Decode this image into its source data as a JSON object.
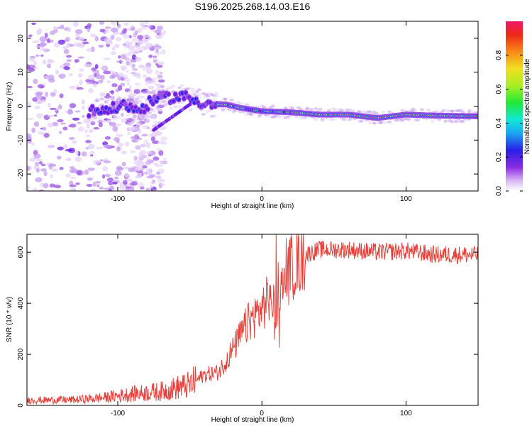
{
  "chart_data": [
    {
      "type": "heatmap",
      "title": "S196.2025.268.14.03.E16",
      "xlabel": "Height of straight line (km)",
      "ylabel": "Frequency (Hz)",
      "xlim": [
        -163,
        150
      ],
      "ylim": [
        -25,
        25
      ],
      "xticks": [
        -100,
        0,
        100
      ],
      "yticks": [
        -20,
        -10,
        0,
        10,
        20
      ],
      "colorbar": {
        "label": "Normalized spectral amplitude",
        "ticks": [
          0.0,
          0.2,
          0.4,
          0.6,
          0.8
        ],
        "range": [
          0,
          1
        ]
      },
      "ridge": {
        "description_points": [
          {
            "x": -118,
            "y": -1.5
          },
          {
            "x": -105,
            "y": -1.0
          },
          {
            "x": -95,
            "y": 0.5
          },
          {
            "x": -85,
            "y": -1.5
          },
          {
            "x": -75,
            "y": 2.0
          },
          {
            "x": -65,
            "y": 2.5
          },
          {
            "x": -55,
            "y": 3.0
          },
          {
            "x": -45,
            "y": 1.5
          },
          {
            "x": -35,
            "y": 0.5
          },
          {
            "x": -25,
            "y": 0.5
          },
          {
            "x": -15,
            "y": -0.5
          },
          {
            "x": 0,
            "y": -1.5
          },
          {
            "x": 20,
            "y": -1.8
          },
          {
            "x": 40,
            "y": -2.5
          },
          {
            "x": 60,
            "y": -2.5
          },
          {
            "x": 80,
            "y": -3.5
          },
          {
            "x": 100,
            "y": -2.5
          },
          {
            "x": 120,
            "y": -2.8
          },
          {
            "x": 150,
            "y": -3.0
          }
        ]
      }
    },
    {
      "type": "line",
      "xlabel": "Height of straight line (km)",
      "ylabel": "SNR (10 * v/v)",
      "xlim": [
        -163,
        150
      ],
      "ylim": [
        0,
        670
      ],
      "xticks": [
        -100,
        0,
        100
      ],
      "yticks": [
        0,
        200,
        400,
        600
      ],
      "color": "#e8403a",
      "envelope": [
        {
          "x": -163,
          "y": 20
        },
        {
          "x": -130,
          "y": 22
        },
        {
          "x": -110,
          "y": 30
        },
        {
          "x": -90,
          "y": 45
        },
        {
          "x": -70,
          "y": 55
        },
        {
          "x": -50,
          "y": 80
        },
        {
          "x": -40,
          "y": 120
        },
        {
          "x": -30,
          "y": 130
        },
        {
          "x": -20,
          "y": 220
        },
        {
          "x": -10,
          "y": 320
        },
        {
          "x": 0,
          "y": 380
        },
        {
          "x": 5,
          "y": 420
        },
        {
          "x": 10,
          "y": 390
        },
        {
          "x": 15,
          "y": 470
        },
        {
          "x": 20,
          "y": 540
        },
        {
          "x": 30,
          "y": 590
        },
        {
          "x": 40,
          "y": 610
        },
        {
          "x": 60,
          "y": 610
        },
        {
          "x": 80,
          "y": 600
        },
        {
          "x": 100,
          "y": 605
        },
        {
          "x": 120,
          "y": 590
        },
        {
          "x": 150,
          "y": 590
        }
      ]
    }
  ]
}
